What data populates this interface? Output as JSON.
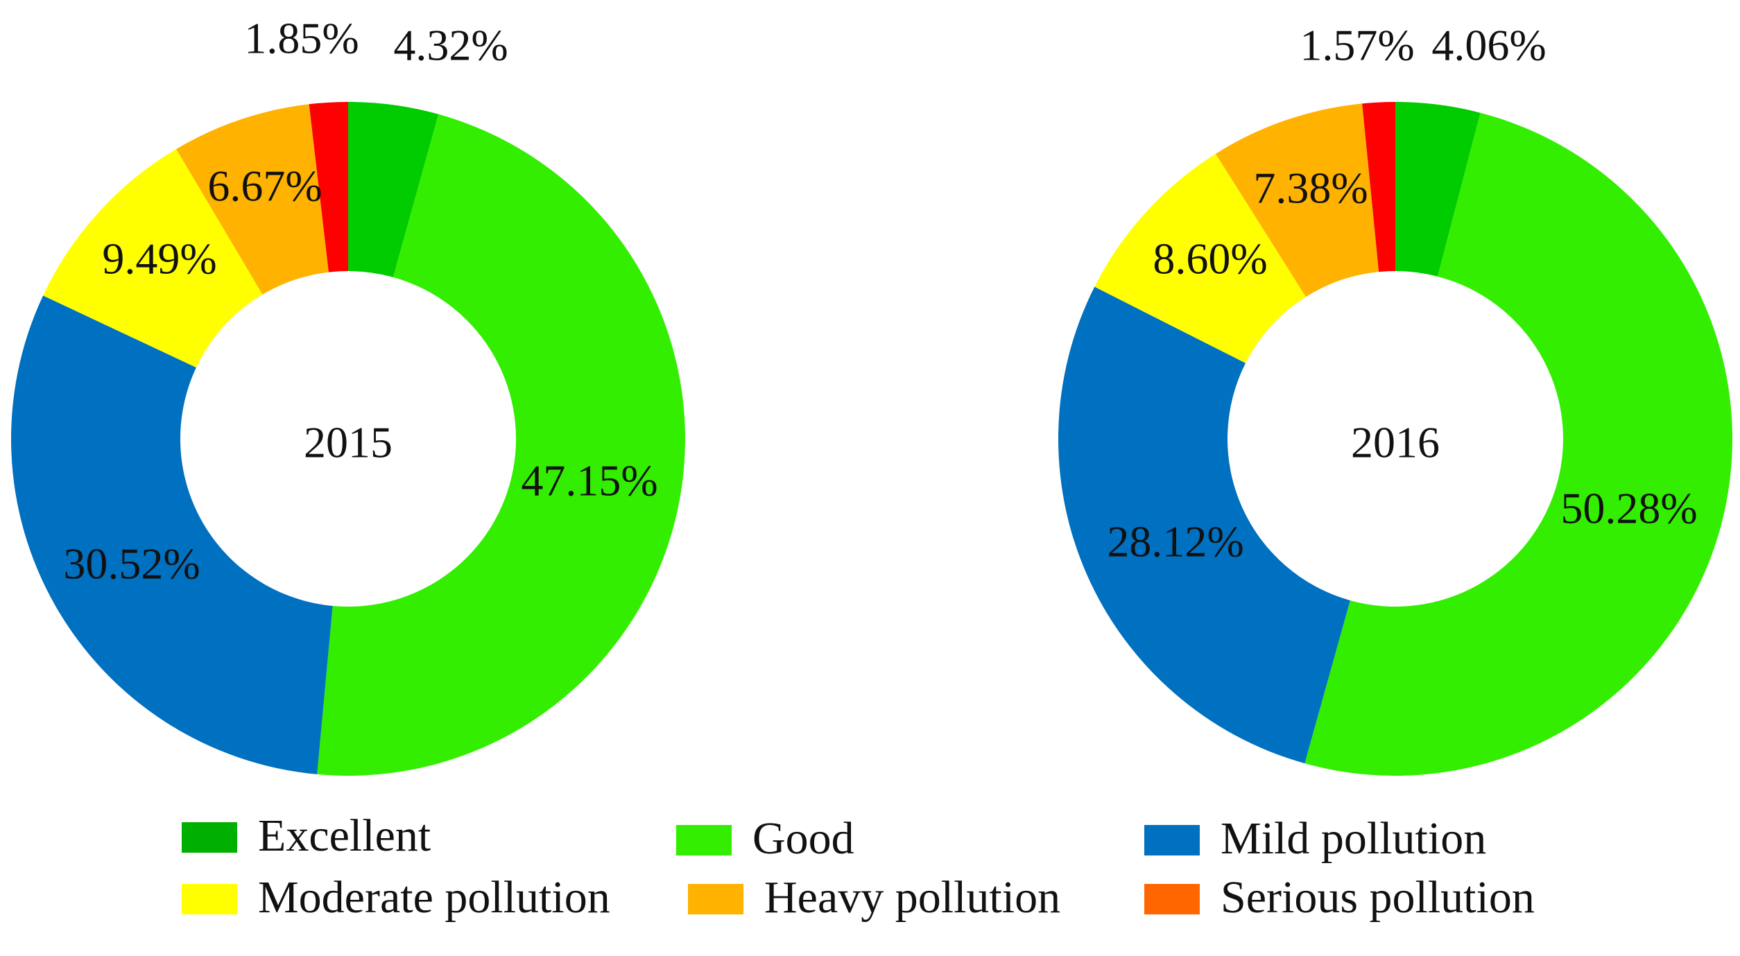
{
  "chart_data": [
    {
      "type": "donut",
      "center_label": "2015",
      "categories": [
        "Excellent",
        "Good",
        "Mild pollution",
        "Moderate pollution",
        "Heavy pollution",
        "Serious pollution"
      ],
      "values": [
        4.32,
        47.15,
        30.52,
        9.49,
        6.67,
        1.85
      ],
      "labels": [
        "4.32%",
        "47.15%",
        "30.52%",
        "9.49%",
        "6.67%",
        "1.85%"
      ]
    },
    {
      "type": "donut",
      "center_label": "2016",
      "categories": [
        "Excellent",
        "Good",
        "Mild pollution",
        "Moderate pollution",
        "Heavy pollution",
        "Serious pollution"
      ],
      "values": [
        4.06,
        50.28,
        28.12,
        8.6,
        7.38,
        1.57
      ],
      "labels": [
        "4.06%",
        "50.28%",
        "28.12%",
        "8.60%",
        "7.38%",
        "1.57%"
      ]
    }
  ],
  "slice_colors": [
    "#00CC00",
    "#33EE00",
    "#0070C0",
    "#FFFF00",
    "#FFB300",
    "#FF0000"
  ],
  "legend": [
    {
      "label": "Excellent",
      "color": "#00B000"
    },
    {
      "label": "Good",
      "color": "#33EE00"
    },
    {
      "label": "Mild pollution",
      "color": "#0070C0"
    },
    {
      "label": "Moderate pollution",
      "color": "#FFFF00"
    },
    {
      "label": "Heavy pollution",
      "color": "#FFB300"
    },
    {
      "label": "Serious pollution",
      "color": "#FF6600"
    }
  ]
}
